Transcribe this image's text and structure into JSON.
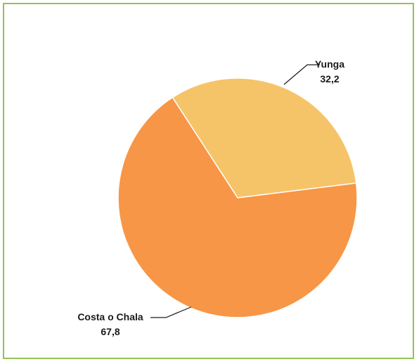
{
  "chart_data": {
    "type": "pie",
    "slices": [
      {
        "label": "Yunga",
        "value": 32.2,
        "value_label": "32,2",
        "color": "#f5c469"
      },
      {
        "label": "Costa o Chala",
        "value": 67.8,
        "value_label": "67,8",
        "color": "#f79646"
      }
    ],
    "title": "",
    "legend": "none",
    "frame_color": "#92c353"
  }
}
